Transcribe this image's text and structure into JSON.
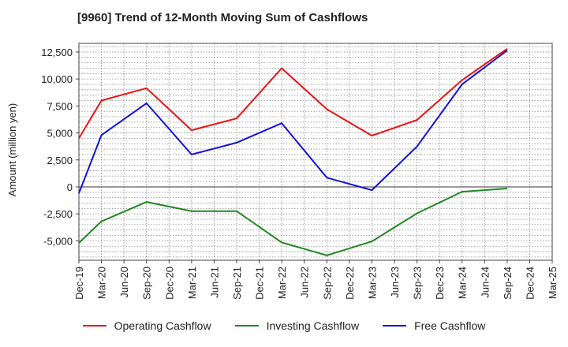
{
  "chart_data": {
    "type": "line",
    "title": "[9960]  Trend of 12-Month Moving Sum of Cashflows",
    "xlabel": "",
    "ylabel": "Amount (million yen)",
    "ylim": [
      -6800,
      13300
    ],
    "yticks": [
      12500,
      10000,
      7500,
      5000,
      2500,
      0,
      -2500,
      -5000
    ],
    "ytick_labels": [
      "12,500",
      "10,000",
      "7,500",
      "5,000",
      "2,500",
      "0",
      "-2,500",
      "-5,000"
    ],
    "categories": [
      "Dec-19",
      "Mar-20",
      "Jun-20",
      "Sep-20",
      "Dec-20",
      "Mar-21",
      "Jun-21",
      "Sep-21",
      "Dec-21",
      "Mar-22",
      "Jun-22",
      "Sep-22",
      "Dec-22",
      "Mar-23",
      "Jun-23",
      "Sep-23",
      "Dec-23",
      "Mar-24",
      "Jun-24",
      "Sep-24",
      "Dec-24",
      "Mar-25"
    ],
    "legend_position": "bottom",
    "grid": true,
    "series": [
      {
        "name": "Operating Cashflow",
        "color": "#ee1111",
        "values": [
          4500,
          8000,
          null,
          9150,
          null,
          5250,
          null,
          6350,
          null,
          11000,
          null,
          7200,
          null,
          4750,
          null,
          6200,
          null,
          9900,
          null,
          12800,
          null,
          null
        ]
      },
      {
        "name": "Investing Cashflow",
        "color": "#228822",
        "values": [
          -5200,
          -3200,
          null,
          -1400,
          null,
          -2250,
          null,
          -2250,
          null,
          -5150,
          null,
          -6350,
          null,
          -5050,
          null,
          -2450,
          null,
          -450,
          null,
          -150,
          null,
          null
        ]
      },
      {
        "name": "Free Cashflow",
        "color": "#1111dd",
        "values": [
          -600,
          4800,
          null,
          7750,
          null,
          3000,
          null,
          4100,
          null,
          5900,
          null,
          850,
          null,
          -300,
          null,
          3750,
          null,
          9500,
          null,
          12650,
          null,
          null
        ]
      }
    ]
  }
}
